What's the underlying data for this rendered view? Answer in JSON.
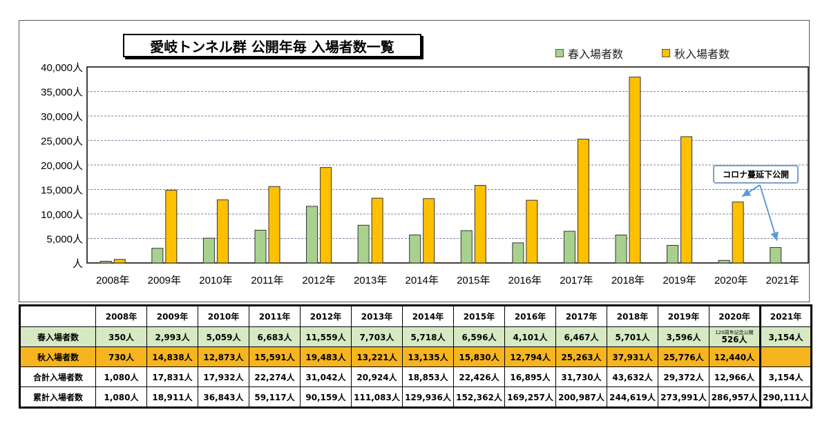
{
  "chart_data": {
    "type": "bar",
    "title": "愛岐トンネル群 公開年毎 入場者数一覧",
    "categories": [
      "2008年",
      "2009年",
      "2010年",
      "2011年",
      "2012年",
      "2013年",
      "2014年",
      "2015年",
      "2016年",
      "2017年",
      "2018年",
      "2019年",
      "2020年",
      "2021年"
    ],
    "series": [
      {
        "name": "春入場者数",
        "color": "#a9d18e",
        "values": [
          350,
          2993,
          5059,
          6683,
          11559,
          7703,
          5718,
          6596,
          4101,
          6467,
          5701,
          3596,
          526,
          3154
        ]
      },
      {
        "name": "秋入場者数",
        "color": "#ffc000",
        "values": [
          730,
          14838,
          12873,
          15591,
          19483,
          13221,
          13135,
          15830,
          12794,
          25263,
          37931,
          25776,
          12440,
          null
        ]
      }
    ],
    "yticks": [
      "人",
      "5,000人",
      "10,000人",
      "15,000人",
      "20,000人",
      "25,000人",
      "30,000人",
      "35,000人",
      "40,000人"
    ],
    "ylim": [
      0,
      40000
    ],
    "grid": true,
    "legend_position": "top-right",
    "annotation": "コロナ蔓延下公開"
  },
  "table": {
    "header": [
      "",
      "2008年",
      "2009年",
      "2010年",
      "2011年",
      "2012年",
      "2013年",
      "2014年",
      "2015年",
      "2016年",
      "2017年",
      "2018年",
      "2019年",
      "2020年",
      "2021年"
    ],
    "rows": [
      {
        "label": "春入場者数",
        "cells": [
          "350人",
          "2,993人",
          "5,059人",
          "6,683人",
          "11,559人",
          "7,703人",
          "5,718人",
          "6,596人",
          "4,101人",
          "6,467人",
          "5,701人",
          "3,596人",
          "526人",
          "3,154人"
        ],
        "note_2020": "120周年記念公開"
      },
      {
        "label": "秋入場者数",
        "cells": [
          "730人",
          "14,838人",
          "12,873人",
          "15,591人",
          "19,483人",
          "13,221人",
          "13,135人",
          "15,830人",
          "12,794人",
          "25,263人",
          "37,931人",
          "25,776人",
          "12,440人",
          ""
        ]
      },
      {
        "label": "合計入場者数",
        "cells": [
          "1,080人",
          "17,831人",
          "17,932人",
          "22,274人",
          "31,042人",
          "20,924人",
          "18,853人",
          "22,426人",
          "16,895人",
          "31,730人",
          "43,632人",
          "29,372人",
          "12,966人",
          "3,154人"
        ]
      },
      {
        "label": "累計入場者数",
        "cells": [
          "1,080人",
          "18,911人",
          "36,843人",
          "59,117人",
          "90,159人",
          "111,083人",
          "129,936人",
          "152,362人",
          "169,257人",
          "200,987人",
          "244,619人",
          "273,991人",
          "286,957人",
          "290,111人"
        ]
      }
    ]
  }
}
